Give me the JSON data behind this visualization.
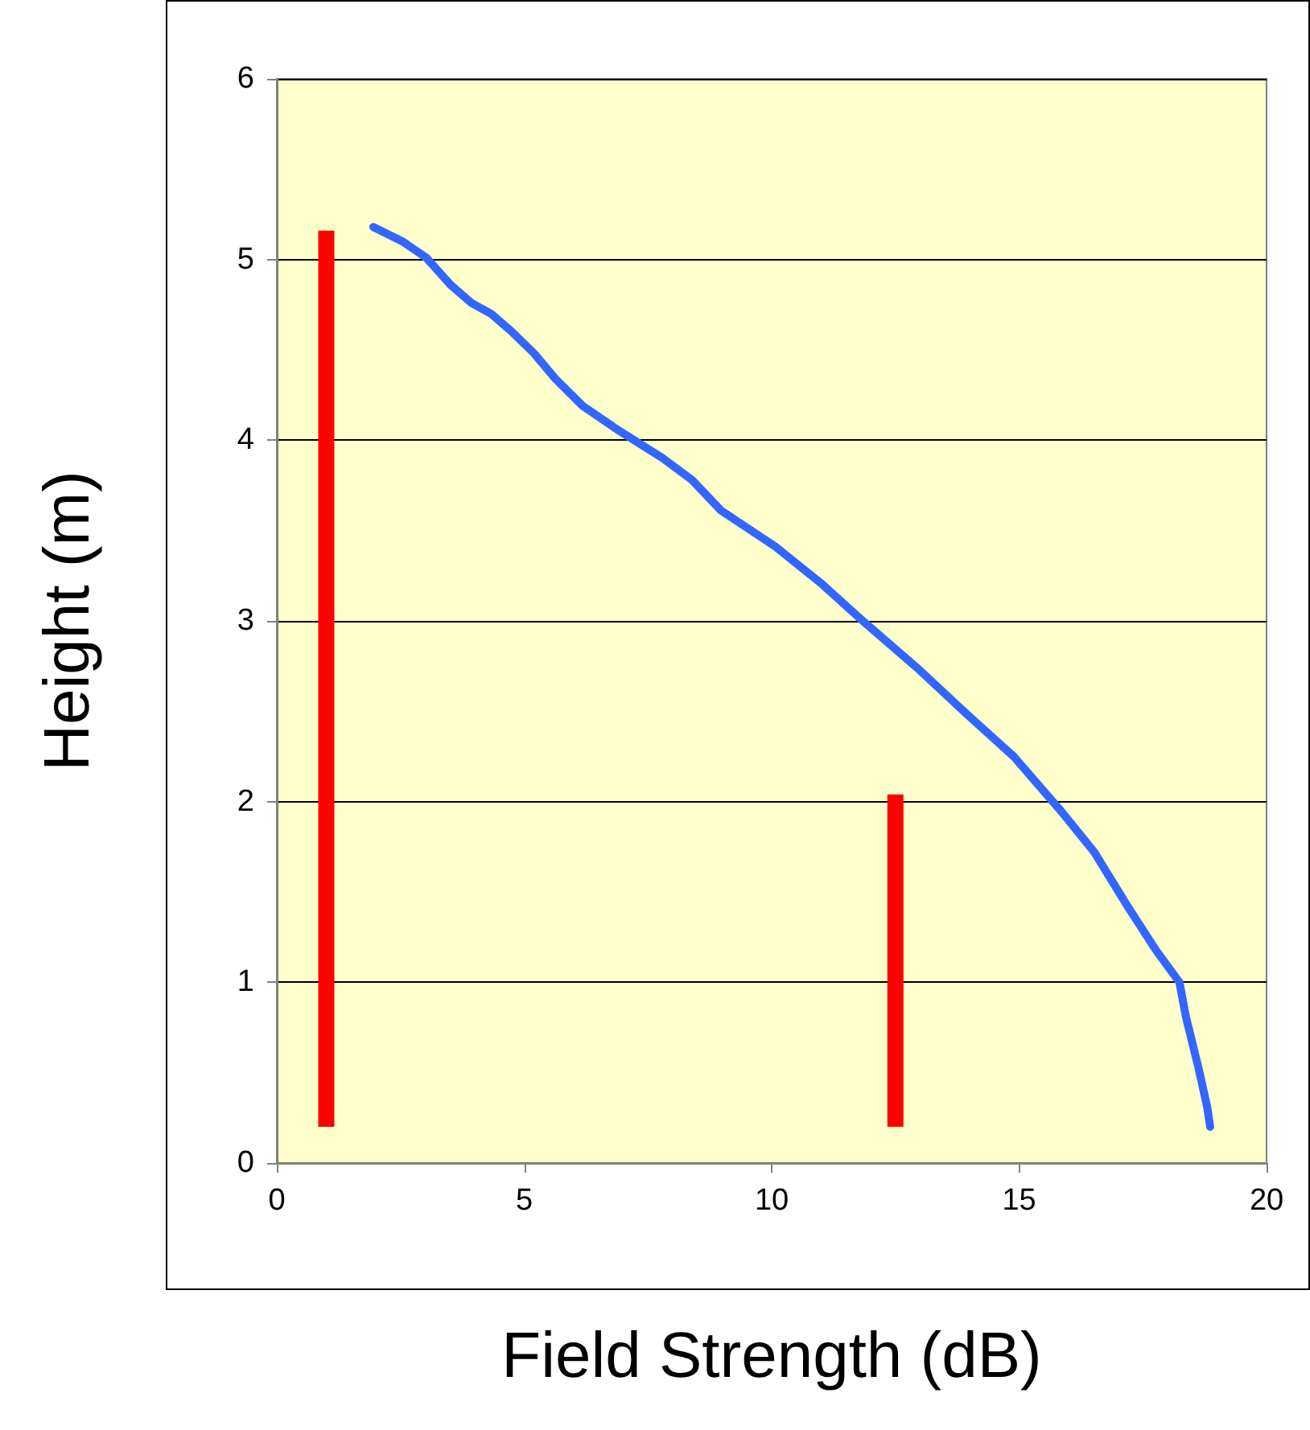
{
  "chart_data": {
    "type": "line",
    "xlabel": "Field Strength (dB)",
    "ylabel": "Height (m)",
    "xlim": [
      0,
      20
    ],
    "xticks": [
      0,
      5,
      10,
      15,
      20
    ],
    "ylim": [
      0,
      6
    ],
    "yticks": [
      0,
      1,
      2,
      3,
      4,
      5,
      6
    ],
    "grid": "y",
    "marker": "none",
    "line_style": "solid",
    "series": [
      {
        "color": "#ff0000",
        "x": [
          1,
          1
        ],
        "values": [
          0.2,
          5.16
        ]
      },
      {
        "color": "#ff0000",
        "x": [
          12.5,
          12.5
        ],
        "values": [
          0.2,
          2.04
        ]
      },
      {
        "color": "#3366ff",
        "x": [
          1.95,
          2.54,
          3.02,
          3.51,
          3.93,
          4.33,
          4.75,
          5.2,
          5.63,
          6.18,
          6.93,
          7.8,
          8.39,
          8.98,
          10.08,
          10.99,
          11.8,
          12.94,
          13.92,
          14.89,
          15.87,
          16.52,
          17.17,
          17.76,
          18.24,
          18.37,
          18.63,
          18.8,
          18.86
        ],
        "values": [
          5.18,
          5.1,
          5.01,
          4.86,
          4.76,
          4.7,
          4.6,
          4.48,
          4.34,
          4.19,
          4.05,
          3.9,
          3.78,
          3.61,
          3.41,
          3.21,
          3.01,
          2.74,
          2.49,
          2.25,
          1.94,
          1.72,
          1.43,
          1.18,
          1,
          0.81,
          0.52,
          0.31,
          0.2
        ]
      }
    ]
  }
}
